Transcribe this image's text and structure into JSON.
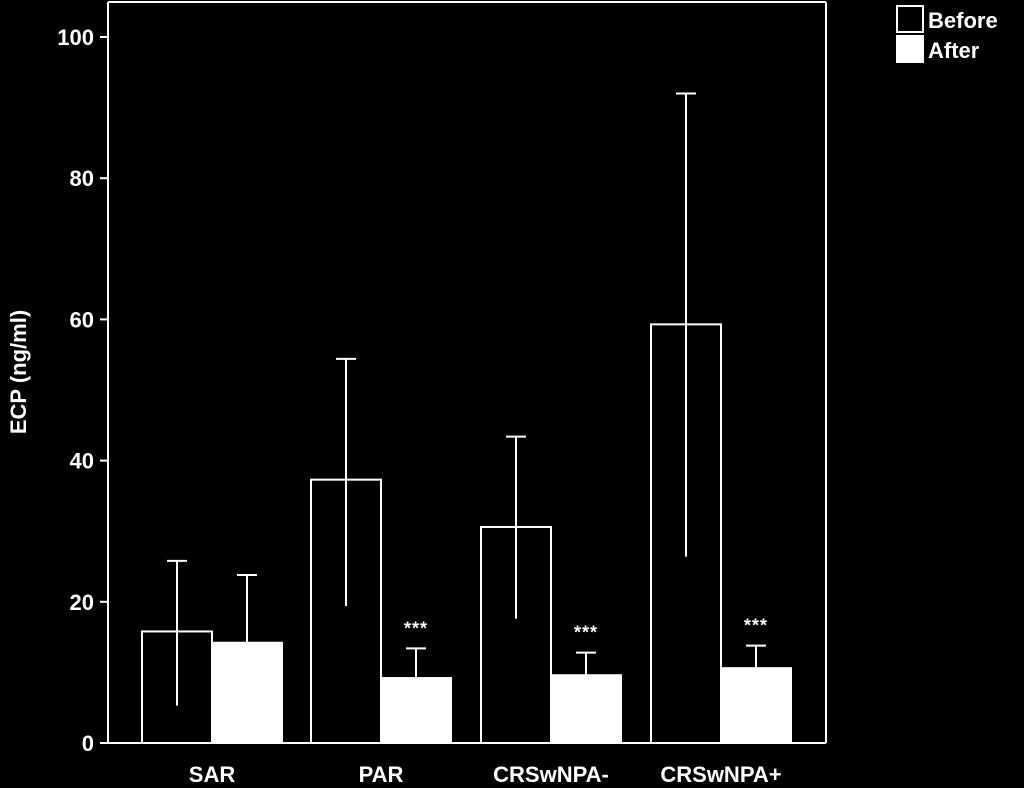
{
  "chart_data": {
    "type": "bar",
    "ylabel": "ECP (ng/ml)",
    "xlabel": "",
    "ylim": [
      0,
      105
    ],
    "yticks": [
      0,
      20,
      40,
      60,
      80,
      100
    ],
    "categories": [
      "SAR",
      "PAR",
      "CRSwNPA-",
      "CRSwNPA+"
    ],
    "series": [
      {
        "name": "Before",
        "fill": "#000000",
        "stroke": "#ffffff",
        "values": [
          15.8,
          37.3,
          30.6,
          59.3
        ],
        "error_upper": [
          25.8,
          54.4,
          43.4,
          92.0
        ],
        "error_lower": [
          5.3,
          19.4,
          17.6,
          26.4
        ]
      },
      {
        "name": "After",
        "fill": "#ffffff",
        "stroke": "#ffffff",
        "values": [
          14.2,
          9.2,
          9.6,
          10.6
        ],
        "error_upper": [
          23.8,
          13.4,
          12.8,
          13.8
        ]
      }
    ],
    "annotations": [
      "",
      "***",
      "***",
      "***"
    ],
    "legend_position": "top-right",
    "grid": false
  }
}
